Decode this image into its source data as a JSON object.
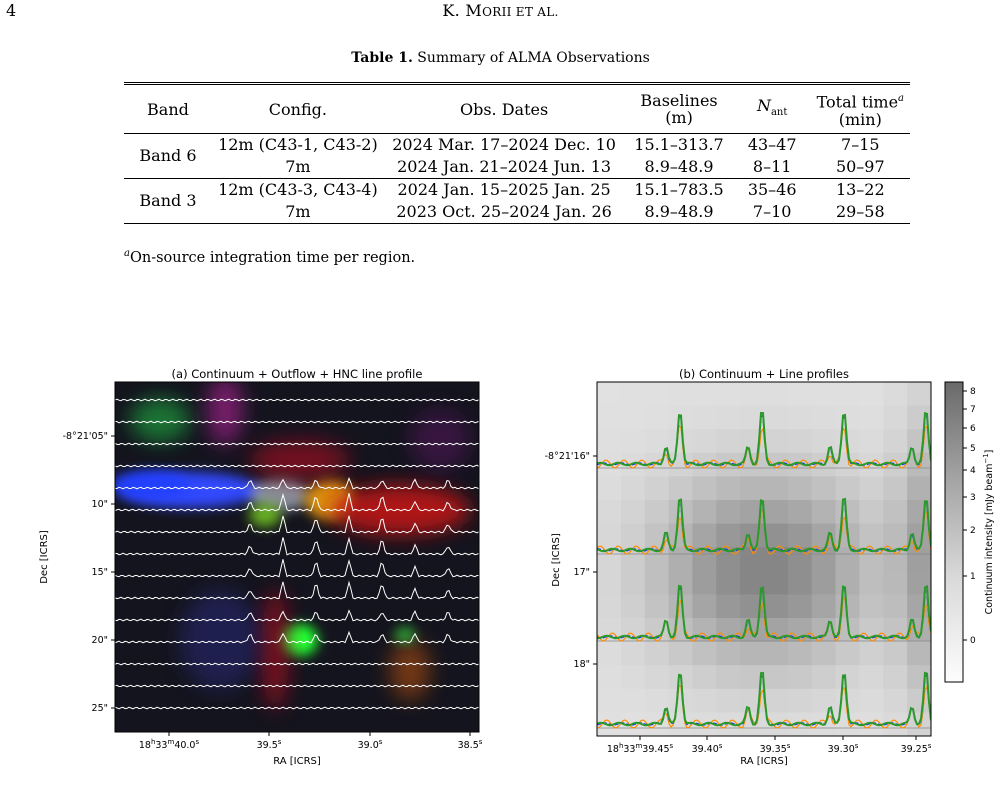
{
  "header": {
    "page_number": "4",
    "running_head_first": "K. M",
    "running_head_sc": "ORII ET AL."
  },
  "table": {
    "caption_label": "Table 1.",
    "caption_text": "Summary of ALMA Observations",
    "headers": {
      "band": "Band",
      "config": "Config.",
      "dates": "Obs. Dates",
      "baselines_line1": "Baselines",
      "baselines_line2": "(m)",
      "nant": "N",
      "nant_sub": "ant",
      "total_time_line1": "Total time",
      "total_time_sup": "a",
      "total_time_line2": "(min)"
    },
    "groups": [
      {
        "band": "Band 6",
        "rows": [
          {
            "config": "12m (C43-1, C43-2)",
            "dates": "2024 Mar. 17–2024 Dec. 10",
            "baselines": "15.1–313.7",
            "nant": "43–47",
            "time": "7–15"
          },
          {
            "config": "7m",
            "dates": "2024 Jan. 21–2024 Jun. 13",
            "baselines": "8.9–48.9",
            "nant": "8–11",
            "time": "50–97"
          }
        ]
      },
      {
        "band": "Band 3",
        "rows": [
          {
            "config": "12m (C43-3, C43-4)",
            "dates": "2024 Jan. 15–2025 Jan. 25",
            "baselines": "15.1–783.5",
            "nant": "35–46",
            "time": "13–22"
          },
          {
            "config": "7m",
            "dates": "2023 Oct. 25–2024 Jan. 26",
            "baselines": "8.9–48.9",
            "nant": "7–10",
            "time": "29–58"
          }
        ]
      }
    ],
    "footnote_sup": "a",
    "footnote_text": "On-source integration time per region."
  },
  "figure": {
    "panel_a": {
      "title": "(a) Continuum + Outflow + HNC line profile",
      "ylabel": "Dec [ICRS]",
      "xlabel": "RA [ICRS]",
      "yticks": [
        "-8°21'05\"",
        "10\"",
        "15\"",
        "20\"",
        "25\""
      ],
      "xticks": [
        {
          "main": "18",
          "h": "h",
          "m1": "33",
          "m": "m",
          "s1": "40.0",
          "s": "s"
        },
        {
          "main": "39.5",
          "s": "s"
        },
        {
          "main": "39.0",
          "s": "s"
        },
        {
          "main": "38.5",
          "s": "s"
        }
      ]
    },
    "panel_b": {
      "title": "(b) Continuum + Line profiles",
      "ylabel": "Dec [ICRS]",
      "xlabel": "RA [ICRS]",
      "yticks": [
        "-8°21'16\"",
        "17\"",
        "18\""
      ],
      "xticks": [
        {
          "main": "18",
          "h": "h",
          "m1": "33",
          "m": "m",
          "s1": "39.45",
          "s": "s"
        },
        {
          "main": "39.40",
          "s": "s"
        },
        {
          "main": "39.35",
          "s": "s"
        },
        {
          "main": "39.30",
          "s": "s"
        },
        {
          "main": "39.25",
          "s": "s"
        }
      ],
      "colorbar": {
        "label": "Continuum intensity [mJy beam",
        "label_sup": "−1",
        "label_end": "]",
        "ticks": [
          "8",
          "7",
          "6",
          "5",
          "4",
          "3",
          "2",
          "1",
          "0"
        ]
      }
    },
    "colors": {
      "hnc_profile": "#ffffff",
      "line_green": "#2a9a2a",
      "line_blue": "#1a2aff",
      "line_orange": "#ff8c00"
    }
  }
}
